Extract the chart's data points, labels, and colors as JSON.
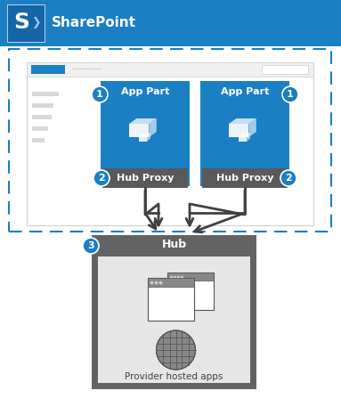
{
  "bg_color": "#ffffff",
  "sharepoint_bar_color": "#1b7fc4",
  "sharepoint_text": "SharePoint",
  "sharepoint_text_color": "#ffffff",
  "dashed_border_color": "#1b7fc4",
  "app_part_bg": "#1b7fc4",
  "app_part_text": "App Part",
  "app_part_text_color": "#ffffff",
  "hub_proxy_bg": "#595959",
  "hub_proxy_text": "Hub Proxy",
  "hub_proxy_text_color": "#ffffff",
  "hub_box_bg": "#636363",
  "hub_box_text": "Hub",
  "hub_box_text_color": "#ffffff",
  "hub_inner_bg": "#e6e6e6",
  "provider_text": "Provider hosted apps",
  "provider_text_color": "#404040",
  "badge_bg": "#1b7fc4",
  "badge_text_color": "#ffffff",
  "arrow_color": "#404040",
  "page_bg": "#ffffff",
  "page_border": "#d0d0d0",
  "page_header_bg": "#f0f0f0",
  "page_nav_blue": "#1b7fc4",
  "page_nav_gray": "#c8c8c8",
  "page_sidebar_gray": "#d8d8d8",
  "page_search_bg": "#ffffff",
  "page_search_border": "#cccccc",
  "icon_dark": "#555555",
  "icon_mid": "#888888",
  "icon_light": "#e0e0e0",
  "title_fontsize": 11,
  "label_fontsize": 8,
  "badge_fontsize": 7,
  "provider_fontsize": 7.5
}
